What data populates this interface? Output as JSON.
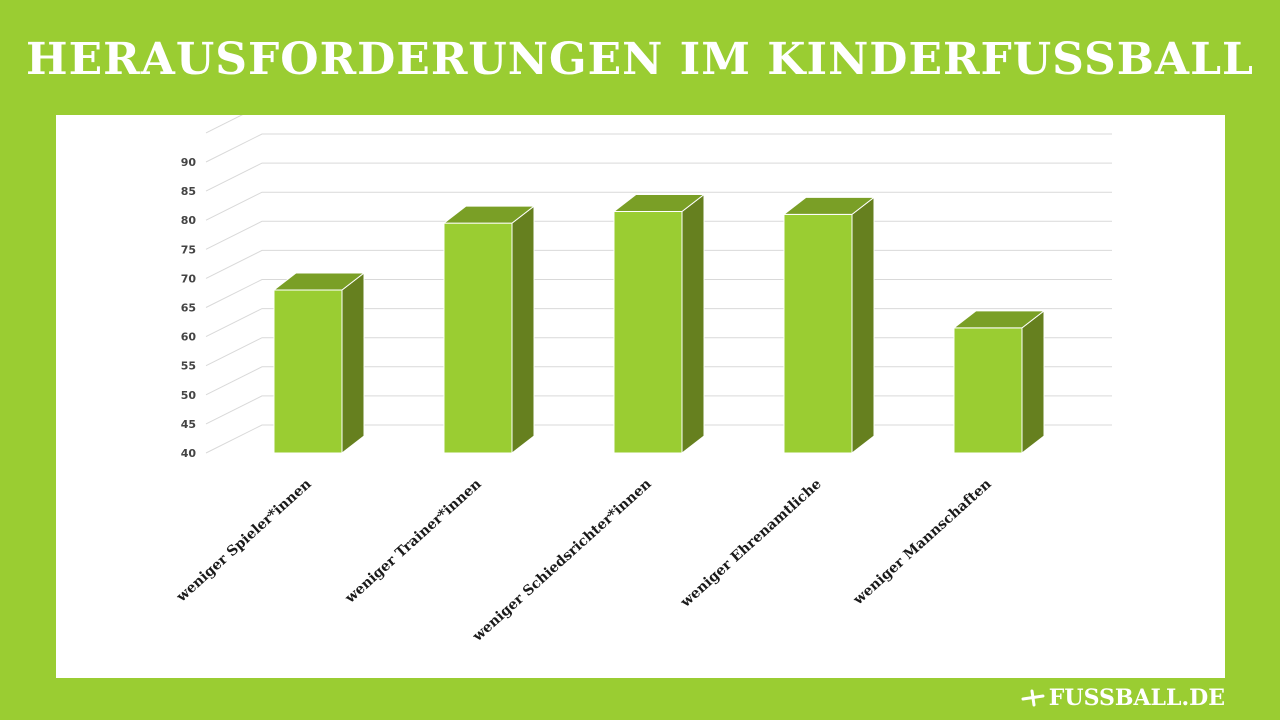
{
  "page": {
    "title": "HERAUSFORDERUNGEN IM KINDERFUSSBALL",
    "logo_text": "FUSSBALL.DE"
  },
  "colors": {
    "background": "#9acd32",
    "bar_front": "#9acd32",
    "bar_side": "#66801f",
    "bar_top": "#7a9f26",
    "grid": "#d9d9d9",
    "tick_text": "#444444",
    "label_text": "#1a1a1a"
  },
  "chart_data": {
    "type": "bar",
    "categories": [
      "weniger Spieler*innen",
      "weniger Trainer*innen",
      "weniger Schiedsrichter*innen",
      "weniger Ehrenamtliche",
      "weniger Mannschaften"
    ],
    "values": [
      68,
      79.5,
      81.5,
      81,
      61.5
    ],
    "ylim": [
      40,
      95
    ],
    "yticks": [
      40,
      45,
      50,
      55,
      60,
      65,
      70,
      75,
      80,
      85,
      90
    ],
    "grid": true,
    "style": "3d-column",
    "title": "",
    "xlabel": "",
    "ylabel": ""
  }
}
